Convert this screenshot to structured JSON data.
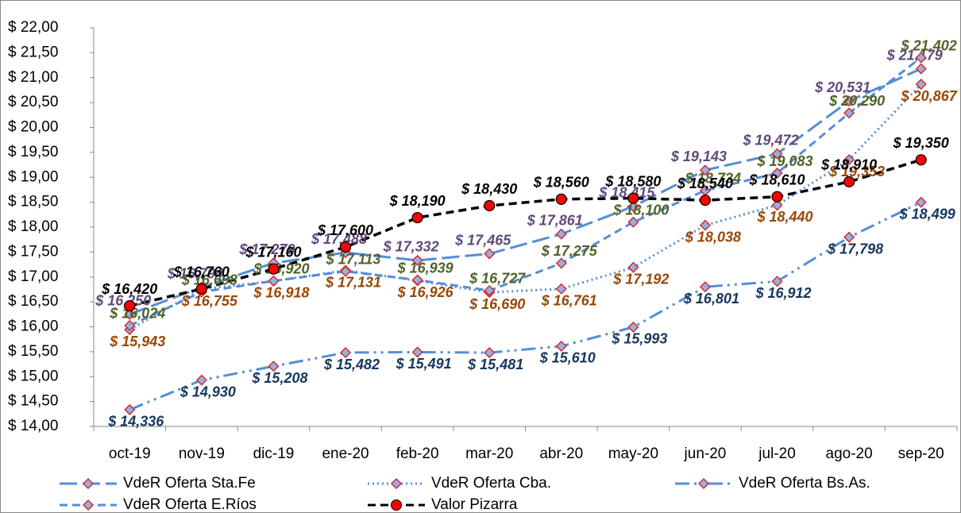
{
  "chart_data": {
    "type": "line",
    "categories": [
      "oct-19",
      "nov-19",
      "dic-19",
      "ene-20",
      "feb-20",
      "mar-20",
      "abr-20",
      "may-20",
      "jun-20",
      "jul-20",
      "ago-20",
      "sep-20"
    ],
    "ylim": [
      14,
      22
    ],
    "yticks": [
      {
        "value": 14,
        "label": "$ 14,00"
      },
      {
        "value": 14.5,
        "label": "$ 14,50"
      },
      {
        "value": 15,
        "label": "$ 15,00"
      },
      {
        "value": 15.5,
        "label": "$ 15,50"
      },
      {
        "value": 16,
        "label": "$ 16,00"
      },
      {
        "value": 16.5,
        "label": "$ 16,50"
      },
      {
        "value": 17,
        "label": "$ 17,00"
      },
      {
        "value": 17.5,
        "label": "$ 17,50"
      },
      {
        "value": 18,
        "label": "$ 18,00"
      },
      {
        "value": 18.5,
        "label": "$ 18,50"
      },
      {
        "value": 19,
        "label": "$ 19,00"
      },
      {
        "value": 19.5,
        "label": "$ 19,50"
      },
      {
        "value": 20,
        "label": "$ 20,00"
      },
      {
        "value": 20.5,
        "label": "$ 20,50"
      },
      {
        "value": 21,
        "label": "$ 21,00"
      },
      {
        "value": 21.5,
        "label": "$ 21,50"
      },
      {
        "value": 22,
        "label": "$ 22,00"
      }
    ],
    "grid": false,
    "series": [
      {
        "name": "VdeR Oferta Sta.Fe",
        "color": "#558ed5",
        "label_color": "#604a7b",
        "line_style": "longdash",
        "marker": "diamond",
        "values": [
          16.25,
          16.794,
          17.279,
          17.488,
          17.332,
          17.465,
          17.861,
          18.415,
          19.143,
          19.472,
          20.531,
          21.179
        ],
        "value_labels": [
          "$ 16,250",
          "$ 16,794",
          "$ 17,279",
          "$ 17,488",
          "$ 17,332",
          "$ 17,465",
          "$ 17,861",
          "$ 18,415",
          "$ 19,143",
          "$ 19,472",
          "$ 20,531",
          "$ 21,179"
        ]
      },
      {
        "name": "VdeR Oferta Cba.",
        "color": "#558ed5",
        "label_color": "#984807",
        "line_style": "dot",
        "marker": "diamond",
        "values": [
          15.943,
          16.755,
          16.918,
          17.131,
          16.926,
          16.69,
          16.761,
          17.192,
          18.038,
          18.44,
          19.353,
          20.867
        ],
        "value_labels": [
          "$ 15,943",
          "$ 16,755",
          "$ 16,918",
          "$ 17,131",
          "$ 16,926",
          "$ 16,690",
          "$ 16,761",
          "$ 17,192",
          "$ 18,038",
          "$ 18,440",
          "$ 19,353",
          "$ 20,867"
        ]
      },
      {
        "name": "VdeR Oferta Bs.As.",
        "color": "#558ed5",
        "label_color": "#17375e",
        "line_style": "dashdotdot",
        "marker": "diamond",
        "values": [
          14.336,
          14.93,
          15.208,
          15.482,
          15.491,
          15.481,
          15.61,
          15.993,
          16.801,
          16.912,
          17.798,
          18.499
        ],
        "value_labels": [
          "$ 14,336",
          "$ 14,930",
          "$ 15,208",
          "$ 15,482",
          "$ 15,491",
          "$ 15,481",
          "$ 15,610",
          "$ 15,993",
          "$ 16,801",
          "$ 16,912",
          "$ 17,798",
          "$ 18,499"
        ]
      },
      {
        "name": "VdeR Oferta E.Ríos",
        "color": "#558ed5",
        "label_color": "#4f6228",
        "line_style": "dash",
        "marker": "diamond",
        "values": [
          16.024,
          16.698,
          16.92,
          17.113,
          16.939,
          16.727,
          17.275,
          18.1,
          18.734,
          19.083,
          20.29,
          21.402
        ],
        "value_labels": [
          "$ 16,024",
          "$ 16,698",
          "$ 16,920",
          "$ 17,113",
          "$ 16,939",
          "$ 16,727",
          "$ 17,275",
          "$ 18,100",
          "$ 18,734",
          "$ 19,083",
          "$ 20,290",
          "$ 21,402"
        ]
      },
      {
        "name": "Valor Pizarra",
        "color": "#000000",
        "label_color": "#000000",
        "line_style": "dash",
        "marker": "circle",
        "values": [
          16.42,
          16.76,
          17.16,
          17.6,
          18.19,
          18.43,
          18.56,
          18.58,
          18.54,
          18.61,
          18.91,
          19.35
        ],
        "value_labels": [
          "$ 16,420",
          "$ 16,760",
          "$ 17,160",
          "$ 17,600",
          "$ 18,190",
          "$ 18,430",
          "$ 18,560",
          "$ 18,580",
          "$ 18,540",
          "$ 18,610",
          "$ 18,910",
          "$ 19,350"
        ]
      }
    ]
  }
}
